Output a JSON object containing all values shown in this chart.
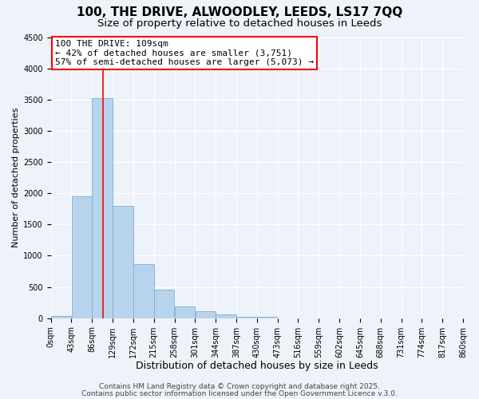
{
  "title": "100, THE DRIVE, ALWOODLEY, LEEDS, LS17 7QQ",
  "subtitle": "Size of property relative to detached houses in Leeds",
  "xlabel": "Distribution of detached houses by size in Leeds",
  "ylabel": "Number of detached properties",
  "bin_edges": [
    0,
    43,
    86,
    129,
    172,
    215,
    258,
    301,
    344,
    387,
    430,
    473,
    516,
    559,
    602,
    645,
    688,
    731,
    774,
    817,
    860
  ],
  "bin_labels": [
    "0sqm",
    "43sqm",
    "86sqm",
    "129sqm",
    "172sqm",
    "215sqm",
    "258sqm",
    "301sqm",
    "344sqm",
    "387sqm",
    "430sqm",
    "473sqm",
    "516sqm",
    "559sqm",
    "602sqm",
    "645sqm",
    "688sqm",
    "731sqm",
    "774sqm",
    "817sqm",
    "860sqm"
  ],
  "bar_heights": [
    30,
    1950,
    3520,
    1800,
    870,
    460,
    185,
    110,
    55,
    25,
    20,
    0,
    0,
    0,
    0,
    0,
    0,
    0,
    0,
    0
  ],
  "bar_color": "#b8d4ed",
  "bar_edgecolor": "#7aaed6",
  "vline_x": 109,
  "vline_color": "red",
  "ylim": [
    0,
    4500
  ],
  "yticks": [
    0,
    500,
    1000,
    1500,
    2000,
    2500,
    3000,
    3500,
    4000,
    4500
  ],
  "annotation_text": "100 THE DRIVE: 109sqm\n← 42% of detached houses are smaller (3,751)\n57% of semi-detached houses are larger (5,073) →",
  "annotation_box_facecolor": "white",
  "annotation_box_edgecolor": "red",
  "footer1": "Contains HM Land Registry data © Crown copyright and database right 2025.",
  "footer2": "Contains public sector information licensed under the Open Government Licence v.3.0.",
  "background_color": "#eef2f9",
  "grid_color": "white",
  "title_fontsize": 11,
  "subtitle_fontsize": 9.5,
  "xlabel_fontsize": 9,
  "ylabel_fontsize": 8,
  "tick_fontsize": 7,
  "annotation_fontsize": 8,
  "footer_fontsize": 6.5
}
